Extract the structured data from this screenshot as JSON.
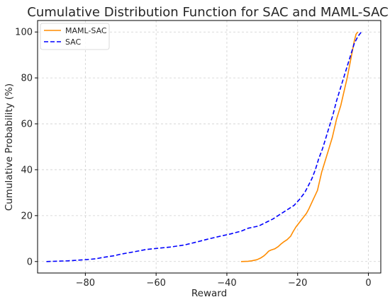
{
  "chart_data": {
    "type": "line",
    "title": "Cumulative Distribution Function for SAC and MAML-SAC",
    "xlabel": "Reward",
    "ylabel": "Cumulative Probability (%)",
    "xlim": [
      -93.5,
      3.5
    ],
    "ylim": [
      -5,
      105
    ],
    "xticks": [
      -80,
      -60,
      -40,
      -20,
      0
    ],
    "xtick_labels": [
      "−80",
      "−60",
      "−40",
      "−20",
      "0"
    ],
    "yticks": [
      0,
      20,
      40,
      60,
      80,
      100
    ],
    "ytick_labels": [
      "0",
      "20",
      "40",
      "60",
      "80",
      "100"
    ],
    "grid": true,
    "legend": "top-left",
    "series": [
      {
        "name": "MAML-SAC",
        "color": "#ff8c00",
        "style": "solid",
        "x": [
          -36,
          -34,
          -33,
          -31.5,
          -30.5,
          -29.5,
          -28.8,
          -28.2,
          -27.5,
          -26.5,
          -25.5,
          -24.8,
          -24,
          -23,
          -22,
          -21.3,
          -20.5,
          -19.5,
          -18.5,
          -17.5,
          -16.8,
          -16.2,
          -15.6,
          -15,
          -14.4,
          -13.8,
          -13.2,
          -12.6,
          -12,
          -11.4,
          -10.8,
          -10.2,
          -9.6,
          -9,
          -8.4,
          -7.8,
          -7.2,
          -6.6,
          -6,
          -5.5,
          -5,
          -4.5,
          -4,
          -3.5,
          -3
        ],
        "y": [
          0,
          0.1,
          0.3,
          0.8,
          1.5,
          2.5,
          3.5,
          4.5,
          5,
          5.5,
          6.5,
          7.5,
          8.5,
          9.5,
          11,
          13,
          15,
          17,
          19,
          21,
          23,
          25,
          27,
          29,
          31,
          35,
          39,
          42,
          45,
          48,
          51,
          54,
          58,
          62,
          65,
          68,
          72,
          76,
          80,
          84,
          88,
          92,
          96,
          99,
          100
        ]
      },
      {
        "name": "SAC",
        "color": "#0000ff",
        "style": "dashed",
        "x": [
          -91,
          -85,
          -80,
          -77,
          -75,
          -72,
          -70,
          -66,
          -63,
          -60,
          -56,
          -52,
          -48,
          -45,
          -42,
          -39,
          -36,
          -34,
          -31,
          -29,
          -27,
          -25,
          -23,
          -21,
          -19.5,
          -18,
          -17,
          -16,
          -15,
          -14,
          -13,
          -12,
          -11,
          -10,
          -9,
          -8,
          -7,
          -6,
          -5,
          -4,
          -3,
          -2
        ],
        "y": [
          0,
          0.3,
          0.8,
          1.2,
          1.8,
          2.5,
          3.2,
          4.3,
          5.2,
          5.7,
          6.3,
          7.2,
          8.7,
          9.9,
          11,
          12,
          13.2,
          14.5,
          15.5,
          17,
          18.5,
          20.5,
          22.5,
          24.5,
          27,
          30,
          33,
          36,
          40,
          45,
          49,
          54,
          59,
          64,
          70,
          75,
          80,
          85,
          90,
          95,
          98,
          100
        ]
      }
    ]
  }
}
